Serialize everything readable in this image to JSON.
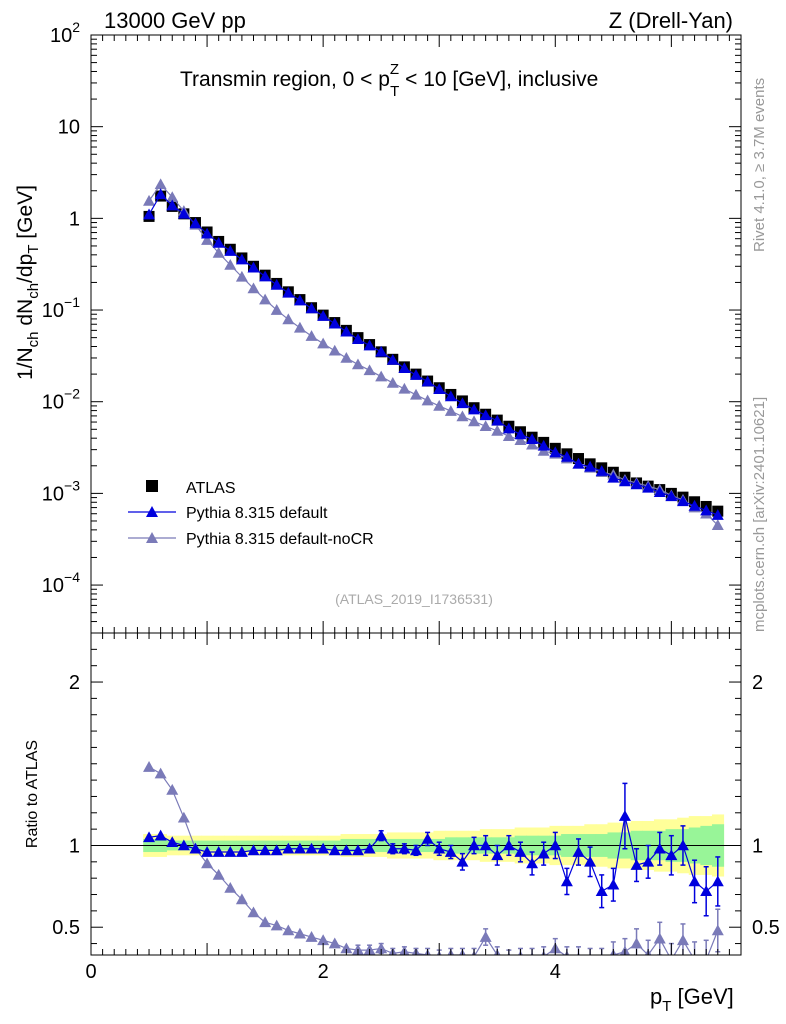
{
  "header": {
    "left": "13000 GeV pp",
    "right": "Z (Drell-Yan)"
  },
  "side": {
    "rivet": "Rivet 4.1.0, ≥ 3.7M events",
    "mcplots": "mcplots.cern.ch [arXiv:2401.10621]"
  },
  "chart_data": [
    {
      "type": "scatter",
      "title": "Transmin region, 0 < p_T^Z < 10 [GeV], inclusive",
      "title_parts": {
        "pre": "Transmin region, 0 < p",
        "sup": "Z",
        "sub": "T",
        "post": " < 10 [GeV], inclusive"
      },
      "ylabel_parts": [
        "1/N",
        "ch",
        " dN",
        "ch",
        "/dp",
        "T",
        " [GeV]"
      ],
      "yscale": "log",
      "ylim": [
        3e-05,
        100
      ],
      "xlim": [
        0,
        5.6
      ],
      "yticks": [
        {
          "base": "10",
          "exp": "2"
        },
        {
          "base": "10",
          "exp": ""
        },
        {
          "base": "1",
          "exp": ""
        },
        {
          "base": "10",
          "exp": "−1"
        },
        {
          "base": "10",
          "exp": "−2"
        },
        {
          "base": "10",
          "exp": "−3"
        },
        {
          "base": "10",
          "exp": "−4"
        }
      ],
      "analysis": "(ATLAS_2019_I1736531)",
      "legend_position": "bottom-left",
      "x": [
        0.5,
        0.6,
        0.7,
        0.8,
        0.9,
        1.0,
        1.1,
        1.2,
        1.3,
        1.4,
        1.5,
        1.6,
        1.7,
        1.8,
        1.9,
        2.0,
        2.1,
        2.2,
        2.3,
        2.4,
        2.5,
        2.6,
        2.7,
        2.8,
        2.9,
        3.0,
        3.1,
        3.2,
        3.3,
        3.4,
        3.5,
        3.6,
        3.7,
        3.8,
        3.9,
        4.0,
        4.1,
        4.2,
        4.3,
        4.4,
        4.5,
        4.6,
        4.7,
        4.8,
        4.9,
        5.0,
        5.1,
        5.2,
        5.3,
        5.4
      ],
      "series": [
        {
          "name": "ATLAS",
          "color": "#000000",
          "marker": "square",
          "values": [
            1.05,
            1.75,
            1.35,
            1.12,
            0.9,
            0.71,
            0.56,
            0.46,
            0.37,
            0.3,
            0.24,
            0.195,
            0.158,
            0.13,
            0.106,
            0.088,
            0.073,
            0.06,
            0.05,
            0.042,
            0.035,
            0.029,
            0.024,
            0.02,
            0.0168,
            0.0142,
            0.012,
            0.0102,
            0.0086,
            0.0073,
            0.0063,
            0.0054,
            0.0047,
            0.0041,
            0.0036,
            0.0031,
            0.0027,
            0.0024,
            0.0021,
            0.0019,
            0.0017,
            0.0015,
            0.0013,
            0.0012,
            0.0011,
            0.001,
            0.00091,
            0.00081,
            0.00072,
            0.00064
          ]
        },
        {
          "name": "Pythia 8.315 default",
          "color": "#0000dd",
          "marker": "triangle",
          "values": [
            1.1,
            1.83,
            1.38,
            1.12,
            0.88,
            0.68,
            0.54,
            0.44,
            0.355,
            0.29,
            0.232,
            0.188,
            0.154,
            0.127,
            0.104,
            0.086,
            0.071,
            0.058,
            0.048,
            0.041,
            0.035,
            0.0285,
            0.0232,
            0.0195,
            0.0166,
            0.0137,
            0.0114,
            0.0096,
            0.0082,
            0.0071,
            0.0062,
            0.0051,
            0.0044,
            0.0039,
            0.0033,
            0.0028,
            0.0025,
            0.0021,
            0.00195,
            0.00175,
            0.00148,
            0.00135,
            0.00125,
            0.00115,
            0.00103,
            0.00093,
            0.00082,
            0.00073,
            0.00065,
            0.00058
          ]
        },
        {
          "name": "Pythia 8.315 default-noCR",
          "color": "#7a7ab8",
          "marker": "triangle",
          "values": [
            1.55,
            2.35,
            1.7,
            1.2,
            0.85,
            0.58,
            0.42,
            0.31,
            0.23,
            0.172,
            0.13,
            0.1,
            0.079,
            0.064,
            0.052,
            0.043,
            0.036,
            0.03,
            0.0255,
            0.022,
            0.0188,
            0.016,
            0.0138,
            0.0119,
            0.0103,
            0.009,
            0.0079,
            0.0069,
            0.0061,
            0.0054,
            0.0048,
            0.0042,
            0.0038,
            0.0034,
            0.0029,
            0.0027,
            0.0024,
            0.0021,
            0.0019,
            0.0017,
            0.0016,
            0.0014,
            0.0013,
            0.0012,
            0.0011,
            0.00095,
            0.00085,
            0.0007,
            0.0006,
            0.00045
          ]
        }
      ]
    },
    {
      "type": "scatter",
      "title": "",
      "ylabel": "Ratio to ATLAS",
      "xlabel_parts": [
        "p",
        "T",
        " [GeV]"
      ],
      "ylim": [
        0.33,
        2.3
      ],
      "xlim": [
        0,
        5.6
      ],
      "xticks": [
        "0",
        "2",
        "4"
      ],
      "yticks": [
        "0.5",
        "1",
        "2"
      ],
      "band_inner": [
        0.96,
        0.96,
        0.97,
        0.97,
        0.97,
        0.97,
        0.97,
        0.97,
        0.97,
        0.97,
        0.97,
        0.97,
        0.97,
        0.97,
        0.97,
        0.97,
        0.97,
        0.96,
        0.96,
        0.96,
        0.96,
        0.96,
        0.96,
        0.96,
        0.96,
        0.96,
        0.95,
        0.95,
        0.95,
        0.95,
        0.95,
        0.95,
        0.94,
        0.94,
        0.94,
        0.94,
        0.93,
        0.93,
        0.93,
        0.93,
        0.92,
        0.92,
        0.91,
        0.91,
        0.91,
        0.9,
        0.9,
        0.89,
        0.88,
        0.87
      ],
      "band_outer": [
        0.93,
        0.93,
        0.94,
        0.94,
        0.94,
        0.94,
        0.94,
        0.94,
        0.94,
        0.94,
        0.94,
        0.94,
        0.94,
        0.94,
        0.94,
        0.94,
        0.94,
        0.93,
        0.93,
        0.93,
        0.93,
        0.92,
        0.92,
        0.92,
        0.92,
        0.91,
        0.91,
        0.91,
        0.91,
        0.9,
        0.9,
        0.9,
        0.89,
        0.89,
        0.89,
        0.88,
        0.88,
        0.88,
        0.87,
        0.87,
        0.86,
        0.86,
        0.85,
        0.85,
        0.84,
        0.84,
        0.83,
        0.82,
        0.82,
        0.81
      ],
      "series": [
        {
          "name": "Pythia 8.315 default",
          "color": "#0000dd",
          "values": [
            1.05,
            1.06,
            1.02,
            1.0,
            0.98,
            0.96,
            0.96,
            0.96,
            0.96,
            0.97,
            0.97,
            0.97,
            0.98,
            0.98,
            0.98,
            0.98,
            0.97,
            0.97,
            0.97,
            0.98,
            1.06,
            0.98,
            0.98,
            0.97,
            1.04,
            0.98,
            0.96,
            0.9,
            1.0,
            1.0,
            0.94,
            1.0,
            0.96,
            0.89,
            0.95,
            1.0,
            0.78,
            0.96,
            0.9,
            0.72,
            0.76,
            1.18,
            0.88,
            0.9,
            0.98,
            0.94,
            1.0,
            0.78,
            0.72,
            0.78
          ],
          "errors": [
            0.02,
            0.02,
            0.02,
            0.02,
            0.02,
            0.02,
            0.02,
            0.02,
            0.02,
            0.02,
            0.02,
            0.02,
            0.02,
            0.02,
            0.02,
            0.02,
            0.02,
            0.02,
            0.02,
            0.02,
            0.03,
            0.03,
            0.03,
            0.03,
            0.04,
            0.04,
            0.04,
            0.05,
            0.05,
            0.06,
            0.06,
            0.06,
            0.06,
            0.07,
            0.07,
            0.08,
            0.08,
            0.08,
            0.09,
            0.1,
            0.1,
            0.2,
            0.1,
            0.1,
            0.1,
            0.12,
            0.12,
            0.13,
            0.15,
            0.15
          ]
        },
        {
          "name": "Pythia 8.315 default-noCR",
          "color": "#7a7ab8",
          "values": [
            1.48,
            1.44,
            1.34,
            1.17,
            0.98,
            0.89,
            0.82,
            0.74,
            0.67,
            0.59,
            0.53,
            0.51,
            0.48,
            0.46,
            0.44,
            0.42,
            0.4,
            0.37,
            0.36,
            0.36,
            0.37,
            0.34,
            0.35,
            0.34,
            0.33,
            0.32,
            0.33,
            0.33,
            0.32,
            0.44,
            0.33,
            0.31,
            0.32,
            0.31,
            0.32,
            0.37,
            0.32,
            0.31,
            0.3,
            0.3,
            0.33,
            0.35,
            0.4,
            0.33,
            0.43,
            0.3,
            0.42,
            0.3,
            0.3,
            0.48
          ],
          "errors": [
            0.02,
            0.02,
            0.02,
            0.02,
            0.02,
            0.02,
            0.02,
            0.02,
            0.02,
            0.02,
            0.02,
            0.02,
            0.02,
            0.02,
            0.02,
            0.02,
            0.02,
            0.02,
            0.03,
            0.03,
            0.03,
            0.03,
            0.03,
            0.03,
            0.04,
            0.04,
            0.04,
            0.04,
            0.05,
            0.05,
            0.05,
            0.05,
            0.05,
            0.06,
            0.06,
            0.06,
            0.06,
            0.07,
            0.07,
            0.07,
            0.08,
            0.08,
            0.09,
            0.09,
            0.1,
            0.1,
            0.1,
            0.11,
            0.12,
            0.13
          ]
        }
      ]
    }
  ],
  "colors": {
    "band_inner": "#98f598",
    "band_outer": "#ffff99"
  }
}
